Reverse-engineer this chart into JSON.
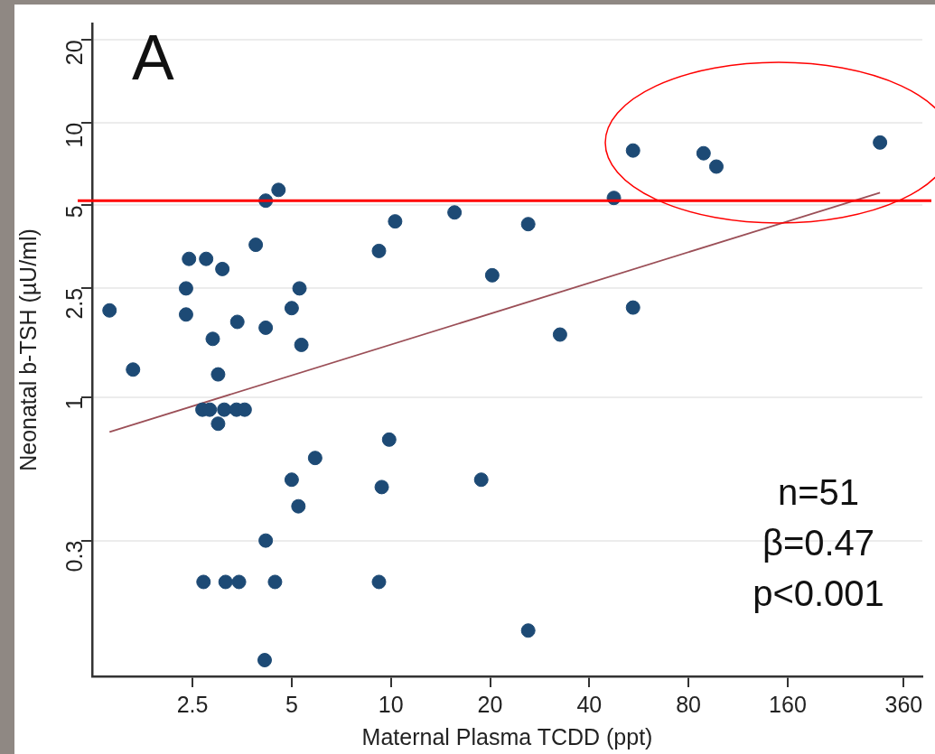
{
  "chart_data": {
    "type": "scatter",
    "xlabel": "Maternal Plasma TCDD (ppt)",
    "ylabel": "Neonatal b-TSH (µU/ml)",
    "annotations": [
      "A",
      "n=51\nβ=0.47\np<0.001"
    ],
    "log": "xy",
    "grid": "y",
    "legend": false,
    "xlim": [
      1.24,
      410
    ],
    "xticks": [
      2.5,
      5,
      10,
      20,
      40,
      80,
      160,
      360
    ],
    "ylim": [
      0.096,
      23
    ],
    "yticks": [
      0.3,
      1,
      2.5,
      5,
      10,
      20
    ],
    "ref_lines": [
      {
        "axis": "y",
        "value": 5.2,
        "color": "#ff0000"
      }
    ],
    "series": [
      {
        "marker": "circle",
        "color": "#1d4a75",
        "x": [
          1.4,
          1.65,
          2.44,
          2.39,
          2.39,
          2.75,
          3.08,
          2.88,
          2.99,
          3.42,
          3.89,
          4.17,
          4.17,
          4.56,
          5.0,
          5.28,
          5.35,
          2.68,
          2.82,
          3.12,
          3.4,
          3.6,
          2.99,
          9.88,
          5.89,
          5.0,
          5.24,
          9.38,
          4.17,
          2.7,
          3.15,
          3.46,
          4.45,
          9.2,
          4.14,
          9.2,
          10.3,
          15.6,
          20.3,
          26.1,
          18.8,
          26.1,
          32.6,
          47.5,
          54.3,
          54.3,
          88.9,
          97.2,
          305
        ],
        "values": [
          2.07,
          1.26,
          3.19,
          2.49,
          2.0,
          3.19,
          2.93,
          1.63,
          1.21,
          1.88,
          3.59,
          1.79,
          5.2,
          5.69,
          2.11,
          2.49,
          1.55,
          0.9,
          0.9,
          0.9,
          0.9,
          0.9,
          0.8,
          0.7,
          0.6,
          0.5,
          0.4,
          0.47,
          0.3,
          0.212,
          0.212,
          0.212,
          0.212,
          0.212,
          0.11,
          3.41,
          4.37,
          4.71,
          2.78,
          4.27,
          0.5,
          0.141,
          1.69,
          5.32,
          2.12,
          7.92,
          7.74,
          6.92,
          8.47
        ]
      },
      {
        "type": "line",
        "marker": "none",
        "color": "#9b4f57",
        "x": [
          1.4,
          305
        ],
        "values": [
          0.746,
          5.56
        ]
      }
    ]
  }
}
